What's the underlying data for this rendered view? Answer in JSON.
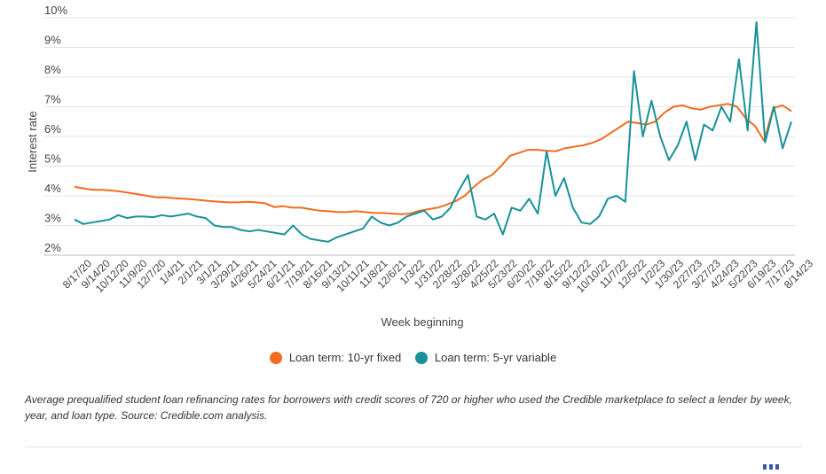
{
  "chart_data": {
    "type": "line",
    "xlabel": "Week beginning",
    "ylabel": "Interest rate",
    "ylim": [
      2,
      10
    ],
    "y_ticks": [
      "2%",
      "3%",
      "4%",
      "5%",
      "6%",
      "7%",
      "8%",
      "9%",
      "10%"
    ],
    "grid": "horizontal",
    "legend_position": "bottom",
    "x_tick_labels": [
      "8/17/20",
      "9/14/20",
      "10/12/20",
      "11/9/20",
      "12/7/20",
      "1/4/21",
      "2/1/21",
      "3/1/21",
      "3/29/21",
      "4/26/21",
      "5/24/21",
      "6/21/21",
      "7/19/21",
      "8/16/21",
      "9/13/21",
      "10/11/21",
      "11/8/21",
      "12/6/21",
      "1/3/22",
      "1/31/22",
      "2/28/22",
      "3/28/22",
      "4/25/22",
      "5/23/22",
      "6/20/22",
      "7/18/22",
      "8/15/22",
      "9/12/22",
      "10/10/22",
      "11/7/22",
      "12/5/22",
      "1/2/23",
      "1/30/23",
      "2/27/23",
      "3/27/23",
      "4/24/23",
      "5/22/23",
      "6/19/23",
      "7/17/23",
      "8/14/23"
    ],
    "series": [
      {
        "name": "Loan term: 10-yr fixed",
        "color": "#f26b21",
        "values": [
          4.3,
          4.25,
          4.2,
          4.2,
          4.18,
          4.15,
          4.1,
          4.05,
          4.0,
          3.95,
          3.95,
          3.92,
          3.9,
          3.88,
          3.85,
          3.82,
          3.8,
          3.78,
          3.78,
          3.8,
          3.78,
          3.75,
          3.62,
          3.65,
          3.6,
          3.6,
          3.55,
          3.5,
          3.48,
          3.45,
          3.45,
          3.48,
          3.45,
          3.42,
          3.42,
          3.4,
          3.38,
          3.4,
          3.5,
          3.55,
          3.6,
          3.7,
          3.82,
          4.0,
          4.3,
          4.55,
          4.7,
          5.0,
          5.35,
          5.45,
          5.55,
          5.55,
          5.52,
          5.5,
          5.6,
          5.65,
          5.7,
          5.78,
          5.9,
          6.1,
          6.3,
          6.5,
          6.45,
          6.4,
          6.5,
          6.8,
          7.0,
          7.05,
          6.95,
          6.9,
          7.0,
          7.05,
          7.1,
          7.0,
          6.6,
          6.35,
          5.85,
          6.95,
          7.05,
          6.85
        ]
      },
      {
        "name": "Loan term: 5-yr variable",
        "color": "#18919a",
        "values": [
          3.2,
          3.05,
          3.1,
          3.15,
          3.2,
          3.35,
          3.25,
          3.3,
          3.3,
          3.28,
          3.35,
          3.3,
          3.35,
          3.4,
          3.3,
          3.25,
          3.0,
          2.95,
          2.95,
          2.85,
          2.8,
          2.85,
          2.8,
          2.75,
          2.7,
          3.0,
          2.7,
          2.55,
          2.5,
          2.45,
          2.6,
          2.7,
          2.8,
          2.9,
          3.3,
          3.1,
          3.0,
          3.1,
          3.3,
          3.4,
          3.5,
          3.2,
          3.3,
          3.6,
          4.2,
          4.7,
          3.3,
          3.2,
          3.4,
          2.7,
          3.6,
          3.5,
          3.9,
          3.4,
          5.5,
          4.0,
          4.6,
          3.6,
          3.1,
          3.05,
          3.3,
          3.9,
          4.0,
          3.8,
          8.2,
          6.0,
          7.2,
          6.0,
          5.2,
          5.7,
          6.5,
          5.2,
          6.4,
          6.2,
          7.0,
          6.5,
          8.6,
          6.2,
          9.85,
          5.8,
          7.0,
          5.6,
          6.5
        ]
      }
    ]
  },
  "legend": {
    "items": [
      {
        "label": "Loan term: 10-yr fixed",
        "color": "#f26b21"
      },
      {
        "label": "Loan term: 5-yr variable",
        "color": "#18919a"
      }
    ]
  },
  "caption": "Average prequalified student loan refinancing rates for borrowers with credit scores of 720 or higher who used the Credible marketplace to select a lender by week, year, and loan type. Source: Credible.com analysis."
}
